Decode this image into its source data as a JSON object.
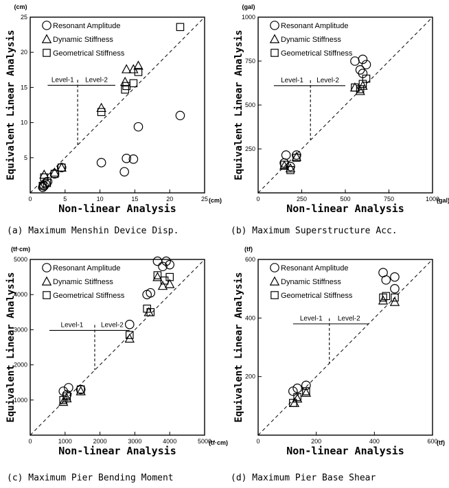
{
  "chart_data": [
    {
      "type": "scatter",
      "caption": "(a) Maximum Menshin Device Disp.",
      "xlabel": "Non-linear Analysis",
      "ylabel": "Equivalent Linear Analysis",
      "x_unit": "(cm)",
      "y_unit": "(cm)",
      "xlim": [
        0,
        25
      ],
      "ylim": [
        0,
        25
      ],
      "x_ticks": [
        0,
        5,
        10,
        15,
        20,
        25
      ],
      "y_ticks": [
        5,
        10,
        15,
        20,
        25
      ],
      "level1_label": "Level-1",
      "level2_label": "Level-2",
      "level_line": {
        "x1": 2.5,
        "x2": 12.2,
        "y": 15.3,
        "divider_x": 6.8,
        "divider_y_bottom": 6.8
      },
      "legend": [
        "Resonant Amplitude",
        "Dynamic Stiffness",
        "Geometrical Stiffness"
      ],
      "series": [
        {
          "name": "Resonant Amplitude",
          "marker": "circle",
          "points": [
            [
              1.8,
              0.8
            ],
            [
              2.0,
              1.0
            ],
            [
              2.2,
              1.3
            ],
            [
              2.5,
              1.6
            ],
            [
              3.5,
              2.7
            ],
            [
              4.5,
              3.6
            ],
            [
              10.2,
              4.3
            ],
            [
              13.5,
              3.0
            ],
            [
              13.8,
              4.9
            ],
            [
              14.8,
              4.8
            ],
            [
              15.5,
              9.4
            ],
            [
              21.5,
              11.0
            ]
          ]
        },
        {
          "name": "Dynamic Stiffness",
          "marker": "triangle",
          "points": [
            [
              1.8,
              1.2
            ],
            [
              2.0,
              2.6
            ],
            [
              3.5,
              2.9
            ],
            [
              4.5,
              3.6
            ],
            [
              10.2,
              12.1
            ],
            [
              13.6,
              15.8
            ],
            [
              13.8,
              17.6
            ],
            [
              14.8,
              17.6
            ],
            [
              15.5,
              18.1
            ]
          ]
        },
        {
          "name": "Geometrical Stiffness",
          "marker": "square",
          "points": [
            [
              1.8,
              1.0
            ],
            [
              2.0,
              2.2
            ],
            [
              2.4,
              1.4
            ],
            [
              3.5,
              2.7
            ],
            [
              4.5,
              3.6
            ],
            [
              10.2,
              11.5
            ],
            [
              13.6,
              14.7
            ],
            [
              13.8,
              15.2
            ],
            [
              14.8,
              15.6
            ],
            [
              15.5,
              17.2
            ],
            [
              21.5,
              23.6
            ]
          ]
        }
      ]
    },
    {
      "type": "scatter",
      "caption": "(b) Maximum Superstructure Acc.",
      "xlabel": "Non-linear Analysis",
      "ylabel": "Equivalent Linear Analysis",
      "x_unit": "(gal)",
      "y_unit": "(gal)",
      "xlim": [
        0,
        1000
      ],
      "ylim": [
        0,
        1000
      ],
      "x_ticks": [
        0,
        250,
        500,
        750,
        1000
      ],
      "y_ticks": [
        250,
        500,
        750,
        1000
      ],
      "level1_label": "Level-1",
      "level2_label": "Level-2",
      "level_line": {
        "x1": 90,
        "x2": 500,
        "y": 610,
        "divider_x": 300,
        "divider_y_bottom": 300
      },
      "legend": [
        "Resonant Amplitude",
        "Dynamic Stiffness",
        "Geometrical Stiffness"
      ],
      "series": [
        {
          "name": "Resonant Amplitude",
          "marker": "circle",
          "points": [
            [
              150,
              170
            ],
            [
              160,
              215
            ],
            [
              185,
              150
            ],
            [
              220,
              215
            ],
            [
              555,
              750
            ],
            [
              585,
              700
            ],
            [
              600,
              760
            ],
            [
              600,
              680
            ],
            [
              620,
              730
            ]
          ]
        },
        {
          "name": "Dynamic Stiffness",
          "marker": "triangle",
          "points": [
            [
              150,
              155
            ],
            [
              185,
              140
            ],
            [
              220,
              205
            ],
            [
              555,
              600
            ],
            [
              585,
              580
            ],
            [
              600,
              610
            ]
          ]
        },
        {
          "name": "Geometrical Stiffness",
          "marker": "square",
          "points": [
            [
              150,
              160
            ],
            [
              185,
              130
            ],
            [
              220,
              200
            ],
            [
              555,
              600
            ],
            [
              585,
              590
            ],
            [
              600,
              620
            ],
            [
              620,
              650
            ]
          ]
        }
      ]
    },
    {
      "type": "scatter",
      "caption": "(c) Maximum Pier Bending Moment",
      "xlabel": "Non-linear Analysis",
      "ylabel": "Equivalent Linear Analysis",
      "x_unit": "(tf·cm)",
      "y_unit": "(tf·cm)",
      "xlim": [
        0,
        5000
      ],
      "ylim": [
        0,
        5000
      ],
      "x_ticks": [
        0,
        1000,
        2000,
        3000,
        4000,
        5000
      ],
      "y_ticks": [
        1000,
        2000,
        3000,
        4000,
        5000
      ],
      "level1_label": "Level-1",
      "level2_label": "Level-2",
      "level_line": {
        "x1": 550,
        "x2": 2850,
        "y": 2980,
        "divider_x": 1850,
        "divider_y_bottom": 1850
      },
      "legend": [
        "Resonant Amplitude",
        "Dynamic Stiffness",
        "Geometrical Stiffness"
      ],
      "series": [
        {
          "name": "Resonant Amplitude",
          "marker": "circle",
          "points": [
            [
              950,
              1250
            ],
            [
              1050,
              1150
            ],
            [
              1100,
              1350
            ],
            [
              1450,
              1300
            ],
            [
              2850,
              3150
            ],
            [
              3350,
              4000
            ],
            [
              3450,
              4050
            ],
            [
              3650,
              4950
            ],
            [
              3800,
              4800
            ],
            [
              3900,
              4950
            ],
            [
              4000,
              4850
            ]
          ]
        },
        {
          "name": "Dynamic Stiffness",
          "marker": "triangle",
          "points": [
            [
              950,
              950
            ],
            [
              1050,
              1050
            ],
            [
              1450,
              1250
            ],
            [
              2850,
              2750
            ],
            [
              3400,
              3500
            ],
            [
              3650,
              4500
            ],
            [
              3800,
              4250
            ],
            [
              4000,
              4300
            ]
          ]
        },
        {
          "name": "Geometrical Stiffness",
          "marker": "square",
          "points": [
            [
              950,
              1000
            ],
            [
              1050,
              1100
            ],
            [
              1450,
              1300
            ],
            [
              2850,
              2850
            ],
            [
              3350,
              3600
            ],
            [
              3450,
              3500
            ],
            [
              3650,
              4550
            ],
            [
              3850,
              4400
            ],
            [
              4000,
              4500
            ]
          ]
        }
      ]
    },
    {
      "type": "scatter",
      "caption": "(d) Maximum Pier Base Shear",
      "xlabel": "Non-linear Analysis",
      "ylabel": "Equivalent Linear Analysis",
      "x_unit": "(tf)",
      "y_unit": "(tf)",
      "xlim": [
        0,
        600
      ],
      "ylim": [
        0,
        600
      ],
      "x_ticks": [
        0,
        200,
        400,
        600
      ],
      "y_ticks": [
        200,
        400,
        600
      ],
      "level1_label": "Level-1",
      "level2_label": "Level-2",
      "level_line": {
        "x1": 120,
        "x2": 380,
        "y": 380,
        "divider_x": 245,
        "divider_y_bottom": 245
      },
      "legend": [
        "Resonant Amplitude",
        "Dynamic Stiffness",
        "Geometrical Stiffness"
      ],
      "series": [
        {
          "name": "Resonant Amplitude",
          "marker": "circle",
          "points": [
            [
              120,
              150
            ],
            [
              135,
              160
            ],
            [
              165,
              170
            ],
            [
              430,
              555
            ],
            [
              440,
              530
            ],
            [
              470,
              540
            ],
            [
              470,
              500
            ]
          ]
        },
        {
          "name": "Dynamic Stiffness",
          "marker": "triangle",
          "points": [
            [
              125,
              110
            ],
            [
              135,
              125
            ],
            [
              165,
              145
            ],
            [
              430,
              460
            ],
            [
              470,
              455
            ]
          ]
        },
        {
          "name": "Geometrical Stiffness",
          "marker": "square",
          "points": [
            [
              120,
              110
            ],
            [
              135,
              130
            ],
            [
              165,
              150
            ],
            [
              430,
              470
            ],
            [
              440,
              475
            ],
            [
              470,
              470
            ]
          ]
        }
      ]
    }
  ]
}
